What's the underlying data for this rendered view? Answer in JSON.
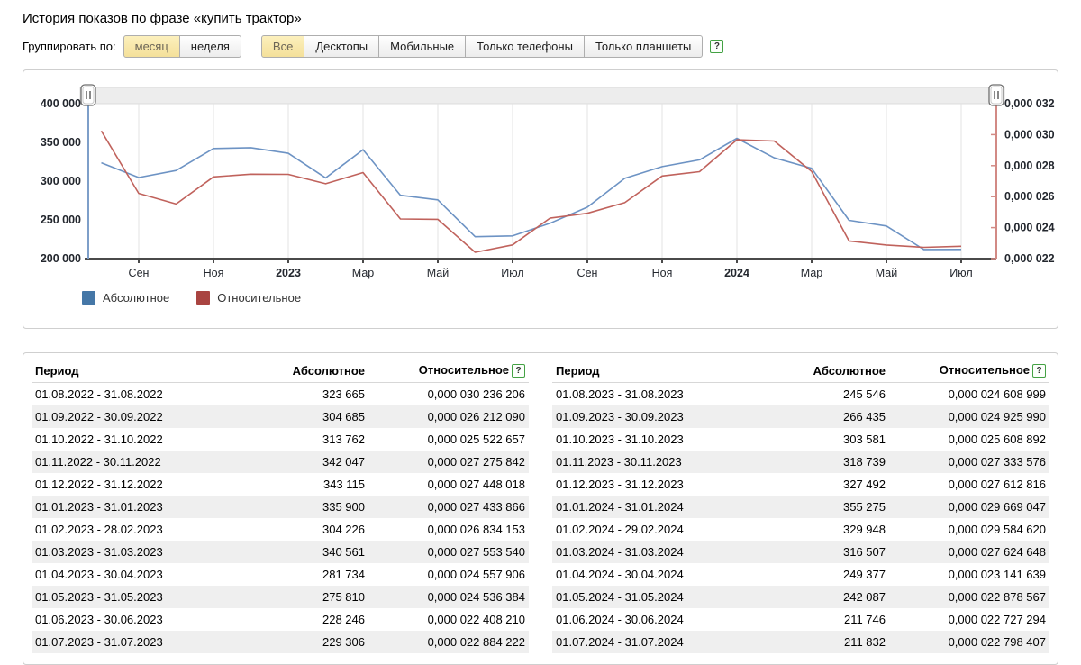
{
  "page": {
    "title": "История показов по фразе «купить трактор»"
  },
  "icons": {
    "help_glyph": "?",
    "slider_handle_glyph": "||"
  },
  "controls": {
    "group_label": "Группировать по:",
    "grouping": [
      {
        "label": "месяц",
        "selected": true
      },
      {
        "label": "неделя",
        "selected": false
      }
    ],
    "devices": [
      {
        "label": "Все",
        "selected": true
      },
      {
        "label": "Десктопы",
        "selected": false
      },
      {
        "label": "Мобильные",
        "selected": false
      },
      {
        "label": "Только телефоны",
        "selected": false
      },
      {
        "label": "Только планшеты",
        "selected": false
      }
    ]
  },
  "legend": [
    {
      "label": "Абсолютное",
      "color": "#4577a7"
    },
    {
      "label": "Относительное",
      "color": "#a94441"
    }
  ],
  "chart_data": {
    "type": "line",
    "title": "История показов по фразе «купить трактор»",
    "categories": [
      "08.2022",
      "09.2022",
      "10.2022",
      "11.2022",
      "12.2022",
      "01.2023",
      "02.2023",
      "03.2023",
      "04.2023",
      "05.2023",
      "06.2023",
      "07.2023",
      "08.2023",
      "09.2023",
      "10.2023",
      "11.2023",
      "12.2023",
      "01.2024",
      "02.2024",
      "03.2024",
      "04.2024",
      "05.2024",
      "06.2024",
      "07.2024"
    ],
    "x_tick_labels": [
      "Сен",
      "Ноя",
      "2023",
      "Мар",
      "Май",
      "Июл",
      "Сен",
      "Ноя",
      "2024",
      "Мар",
      "Май",
      "Июл"
    ],
    "series": [
      {
        "name": "Абсолютное",
        "axis": "left",
        "color": "#6d93c4",
        "values": [
          323665,
          304685,
          313762,
          342047,
          343115,
          335900,
          304226,
          340561,
          281734,
          275810,
          228246,
          229306,
          245546,
          266435,
          303581,
          318739,
          327492,
          355275,
          329948,
          316507,
          249377,
          242087,
          211746,
          211832
        ]
      },
      {
        "name": "Относительное",
        "axis": "right",
        "color": "#c0625c",
        "values": [
          3.0236206e-05,
          2.621209e-05,
          2.5522657e-05,
          2.7275842e-05,
          2.7448018e-05,
          2.7433866e-05,
          2.6834153e-05,
          2.755354e-05,
          2.4557906e-05,
          2.4536384e-05,
          2.240821e-05,
          2.2884222e-05,
          2.4608999e-05,
          2.492599e-05,
          2.5608892e-05,
          2.7333576e-05,
          2.7612816e-05,
          2.9669047e-05,
          2.958462e-05,
          2.7624648e-05,
          2.3141639e-05,
          2.2878567e-05,
          2.2727294e-05,
          2.2798407e-05
        ]
      }
    ],
    "left_axis": {
      "min": 200000,
      "max": 400000,
      "ticks": [
        "400 000",
        "350 000",
        "300 000",
        "250 000",
        "200 000"
      ],
      "color": "#7e9fc9"
    },
    "right_axis": {
      "min": 2.2e-05,
      "max": 3.2e-05,
      "ticks": [
        "0,000 032",
        "0,000 030",
        "0,000 028",
        "0,000 026",
        "0,000 024",
        "0,000 022"
      ],
      "color": "#d28a85"
    },
    "grid": "vertical",
    "legend_position": "bottom-left"
  },
  "tables": {
    "headers": {
      "period": "Период",
      "absolute": "Абсолютное",
      "relative": "Относительное"
    },
    "left_rows": [
      {
        "period": "01.08.2022 - 31.08.2022",
        "absolute": "323 665",
        "relative": "0,000 030 236 206"
      },
      {
        "period": "01.09.2022 - 30.09.2022",
        "absolute": "304 685",
        "relative": "0,000 026 212 090"
      },
      {
        "period": "01.10.2022 - 31.10.2022",
        "absolute": "313 762",
        "relative": "0,000 025 522 657"
      },
      {
        "period": "01.11.2022 - 30.11.2022",
        "absolute": "342 047",
        "relative": "0,000 027 275 842"
      },
      {
        "period": "01.12.2022 - 31.12.2022",
        "absolute": "343 115",
        "relative": "0,000 027 448 018"
      },
      {
        "period": "01.01.2023 - 31.01.2023",
        "absolute": "335 900",
        "relative": "0,000 027 433 866"
      },
      {
        "period": "01.02.2023 - 28.02.2023",
        "absolute": "304 226",
        "relative": "0,000 026 834 153"
      },
      {
        "period": "01.03.2023 - 31.03.2023",
        "absolute": "340 561",
        "relative": "0,000 027 553 540"
      },
      {
        "period": "01.04.2023 - 30.04.2023",
        "absolute": "281 734",
        "relative": "0,000 024 557 906"
      },
      {
        "period": "01.05.2023 - 31.05.2023",
        "absolute": "275 810",
        "relative": "0,000 024 536 384"
      },
      {
        "period": "01.06.2023 - 30.06.2023",
        "absolute": "228 246",
        "relative": "0,000 022 408 210"
      },
      {
        "period": "01.07.2023 - 31.07.2023",
        "absolute": "229 306",
        "relative": "0,000 022 884 222"
      }
    ],
    "right_rows": [
      {
        "period": "01.08.2023 - 31.08.2023",
        "absolute": "245 546",
        "relative": "0,000 024 608 999"
      },
      {
        "period": "01.09.2023 - 30.09.2023",
        "absolute": "266 435",
        "relative": "0,000 024 925 990"
      },
      {
        "period": "01.10.2023 - 31.10.2023",
        "absolute": "303 581",
        "relative": "0,000 025 608 892"
      },
      {
        "period": "01.11.2023 - 30.11.2023",
        "absolute": "318 739",
        "relative": "0,000 027 333 576"
      },
      {
        "period": "01.12.2023 - 31.12.2023",
        "absolute": "327 492",
        "relative": "0,000 027 612 816"
      },
      {
        "period": "01.01.2024 - 31.01.2024",
        "absolute": "355 275",
        "relative": "0,000 029 669 047"
      },
      {
        "period": "01.02.2024 - 29.02.2024",
        "absolute": "329 948",
        "relative": "0,000 029 584 620"
      },
      {
        "period": "01.03.2024 - 31.03.2024",
        "absolute": "316 507",
        "relative": "0,000 027 624 648"
      },
      {
        "period": "01.04.2024 - 30.04.2024",
        "absolute": "249 377",
        "relative": "0,000 023 141 639"
      },
      {
        "period": "01.05.2024 - 31.05.2024",
        "absolute": "242 087",
        "relative": "0,000 022 878 567"
      },
      {
        "period": "01.06.2024 - 30.06.2024",
        "absolute": "211 746",
        "relative": "0,000 022 727 294"
      },
      {
        "period": "01.07.2024 - 31.07.2024",
        "absolute": "211 832",
        "relative": "0,000 022 798 407"
      }
    ]
  }
}
